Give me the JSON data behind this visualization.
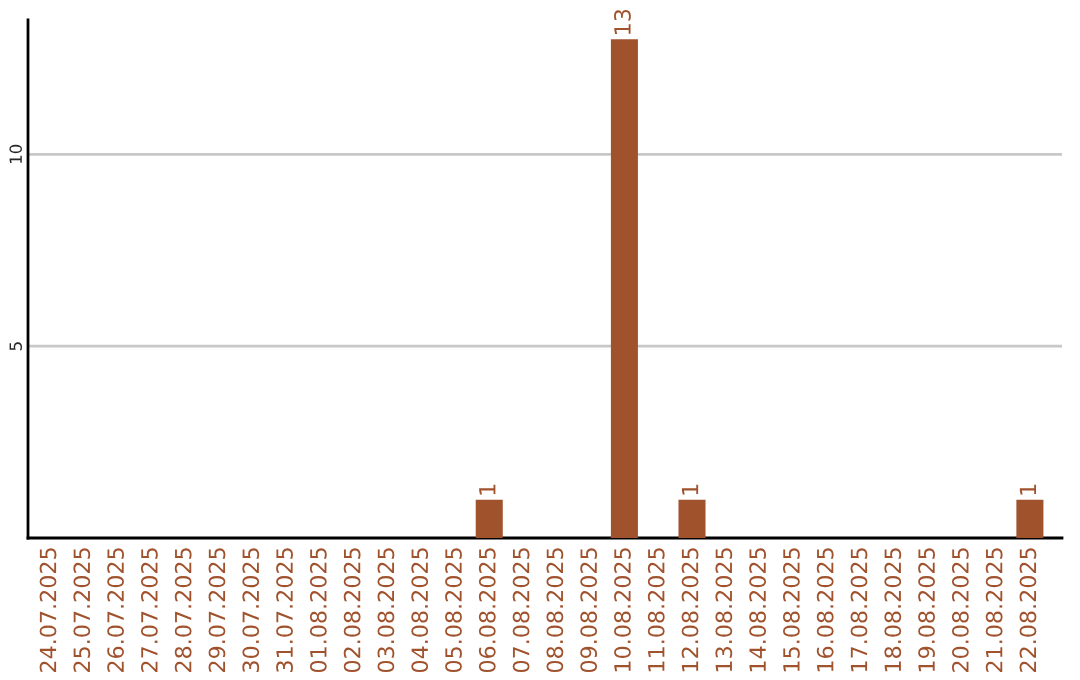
{
  "chart_data": {
    "type": "bar",
    "categories": [
      "24.07.2025",
      "25.07.2025",
      "26.07.2025",
      "27.07.2025",
      "28.07.2025",
      "29.07.2025",
      "30.07.2025",
      "31.07.2025",
      "01.08.2025",
      "02.08.2025",
      "03.08.2025",
      "04.08.2025",
      "05.08.2025",
      "06.08.2025",
      "07.08.2025",
      "08.08.2025",
      "09.08.2025",
      "10.08.2025",
      "11.08.2025",
      "12.08.2025",
      "13.08.2025",
      "14.08.2025",
      "15.08.2025",
      "16.08.2025",
      "17.08.2025",
      "18.08.2025",
      "19.08.2025",
      "20.08.2025",
      "21.08.2025",
      "22.08.2025"
    ],
    "values": [
      null,
      null,
      null,
      null,
      null,
      null,
      null,
      null,
      null,
      null,
      null,
      null,
      null,
      1,
      null,
      null,
      null,
      13,
      null,
      1,
      null,
      null,
      null,
      null,
      null,
      null,
      null,
      null,
      null,
      1
    ],
    "value_labels": [
      null,
      null,
      null,
      null,
      null,
      null,
      null,
      null,
      null,
      null,
      null,
      null,
      null,
      "1",
      null,
      null,
      null,
      "13",
      null,
      "1",
      null,
      null,
      null,
      null,
      null,
      null,
      null,
      null,
      null,
      "1"
    ],
    "color": "#a0522d",
    "ylim": [
      0,
      13.5
    ],
    "yticks": [
      5,
      10
    ],
    "grid": "y",
    "legend": false
  }
}
